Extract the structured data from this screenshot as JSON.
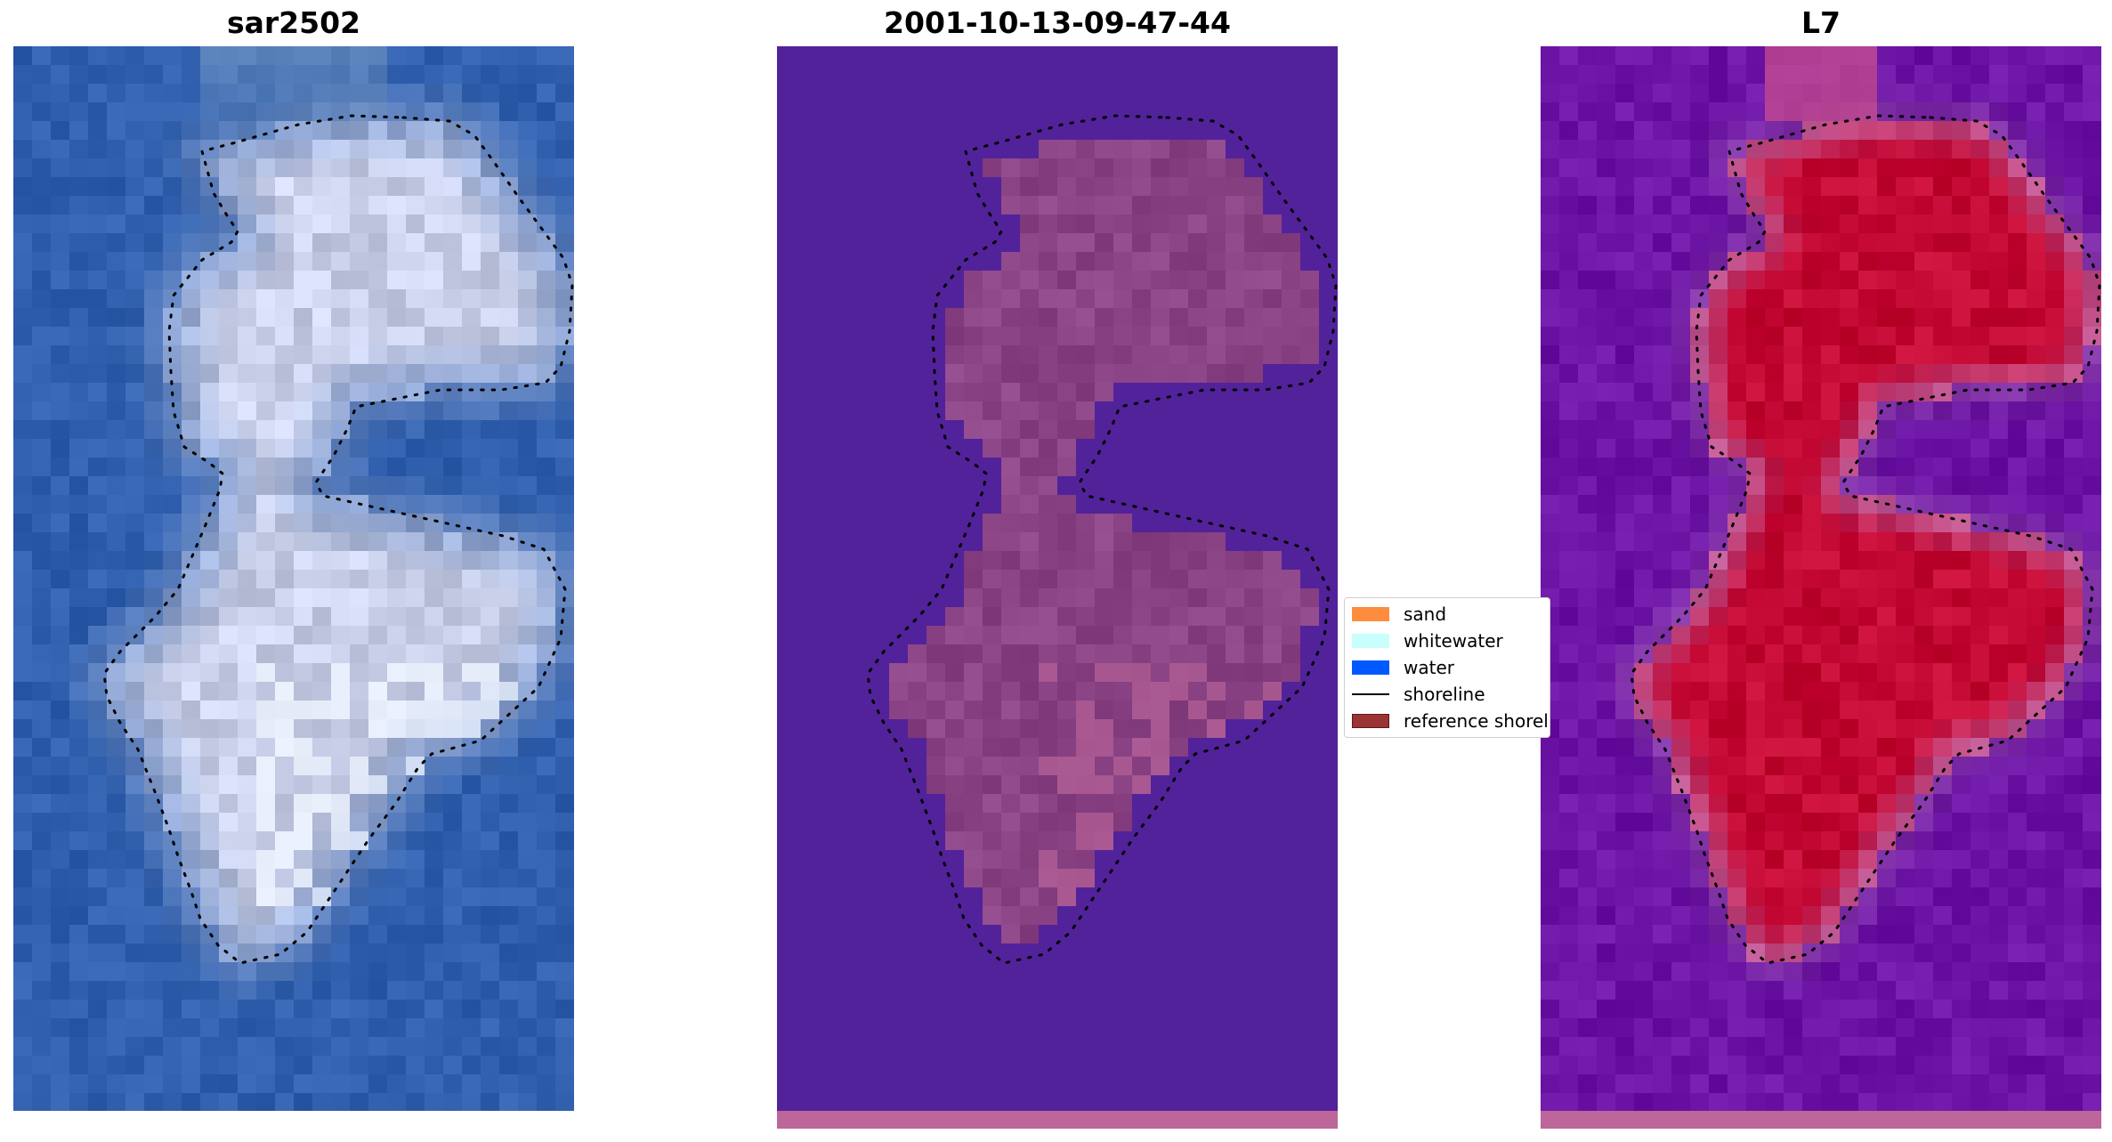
{
  "panels": [
    {
      "title": "sar2502",
      "style": "rgb"
    },
    {
      "title": "2001-10-13-09-47-44",
      "style": "classified"
    },
    {
      "title": "L7",
      "style": "index"
    }
  ],
  "legend": {
    "items": [
      {
        "label": "sand",
        "type": "patch",
        "color": "#fe8c3e"
      },
      {
        "label": "whitewater",
        "type": "patch",
        "color": "#c8fffc"
      },
      {
        "label": "water",
        "type": "patch",
        "color": "#0059ff"
      },
      {
        "label": "shoreline",
        "type": "line",
        "color": "#000000"
      },
      {
        "label": "reference shoreline",
        "type": "patch",
        "color": "#9b3434",
        "edge": "#5a1a1a"
      }
    ]
  },
  "colors": {
    "rgb_water": "#2f5fad",
    "rgb_land": "#c9cfe8",
    "classified_background": "#52229a",
    "classified_land": "#8a4384",
    "classified_bottom_band": "#bd6699",
    "index_background": "#6c14a4",
    "index_land": "#c20833",
    "index_bottom_band": "#bd6699"
  }
}
